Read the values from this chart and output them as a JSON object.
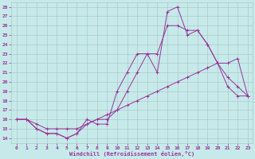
{
  "xlabel": "Windchill (Refroidissement éolien,°C)",
  "xlim": [
    -0.5,
    23.5
  ],
  "ylim": [
    13.5,
    28.5
  ],
  "yticks": [
    14,
    15,
    16,
    17,
    18,
    19,
    20,
    21,
    22,
    23,
    24,
    25,
    26,
    27,
    28
  ],
  "xticks": [
    0,
    1,
    2,
    3,
    4,
    5,
    6,
    7,
    8,
    9,
    10,
    11,
    12,
    13,
    14,
    15,
    16,
    17,
    18,
    19,
    20,
    21,
    22,
    23
  ],
  "bg_color": "#c6eaea",
  "grid_color": "#b0c8c8",
  "line_color": "#993399",
  "line1_x": [
    0,
    1,
    2,
    3,
    4,
    5,
    6,
    7,
    8,
    9,
    10,
    11,
    12,
    13,
    14,
    15,
    16,
    17,
    18,
    19,
    20,
    21,
    22,
    23
  ],
  "line1_y": [
    16,
    16,
    15,
    14.5,
    14.5,
    14,
    14.5,
    16,
    15.5,
    15.5,
    19,
    21,
    23,
    23,
    21,
    27.5,
    28,
    25,
    25.5,
    24,
    22,
    19.5,
    18.5,
    18.5
  ],
  "line2_x": [
    0,
    1,
    2,
    3,
    4,
    5,
    6,
    7,
    8,
    9,
    10,
    11,
    12,
    13,
    14,
    15,
    16,
    17,
    18,
    19,
    20,
    21,
    22,
    23
  ],
  "line2_y": [
    16,
    16,
    15,
    14.5,
    14.5,
    14,
    14.5,
    15.5,
    16,
    16,
    17,
    19,
    21,
    23,
    23,
    26,
    26,
    25.5,
    25.5,
    24,
    22,
    20.5,
    19.5,
    18.5
  ],
  "line3_x": [
    0,
    1,
    2,
    3,
    4,
    5,
    6,
    7,
    8,
    9,
    10,
    11,
    12,
    13,
    14,
    15,
    16,
    17,
    18,
    19,
    20,
    21,
    22,
    23
  ],
  "line3_y": [
    16,
    16,
    15.5,
    15,
    15,
    15,
    15,
    15.5,
    16,
    16.5,
    17,
    17.5,
    18,
    18.5,
    19,
    19.5,
    20,
    20.5,
    21,
    21.5,
    22,
    22,
    22.5,
    18.5
  ]
}
